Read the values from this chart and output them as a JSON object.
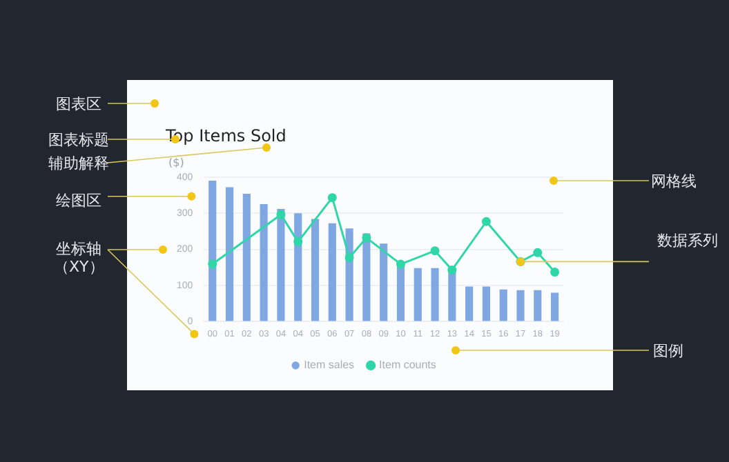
{
  "chart_data": {
    "type": "bar",
    "title": "Top Items Sold",
    "ylabel": "($)",
    "categories": [
      "00",
      "01",
      "02",
      "03",
      "04",
      "04",
      "05",
      "06",
      "07",
      "08",
      "09",
      "10",
      "11",
      "12",
      "13",
      "14",
      "15",
      "16",
      "17",
      "18",
      "19"
    ],
    "series": [
      {
        "name": "Item sales",
        "color": "#7fa8e3",
        "values": [
          390,
          372,
          354,
          325,
          312,
          300,
          284,
          272,
          258,
          244,
          216,
          161,
          148,
          148,
          141,
          97,
          97,
          89,
          87,
          87,
          80
        ]
      },
      {
        "name": "Item counts",
        "type": "line",
        "color": "#2fd6a8",
        "values": [
          159,
          null,
          null,
          null,
          296,
          221,
          null,
          343,
          177,
          232,
          null,
          159,
          null,
          196,
          143,
          null,
          277,
          null,
          166,
          191,
          137
        ]
      }
    ],
    "ylim": [
      0,
      400
    ],
    "yticks": [
      0,
      100,
      200,
      300,
      400
    ],
    "grid": "y",
    "legend": "bottom",
    "marker": "circle",
    "annotations": [
      "图表区",
      "图表标题",
      "辅助解释",
      "绘图区",
      "坐标轴（XY）",
      "网格线",
      {
        "text": "数据系列",
        "x": "17",
        "y": 166
      },
      "图例"
    ]
  }
}
